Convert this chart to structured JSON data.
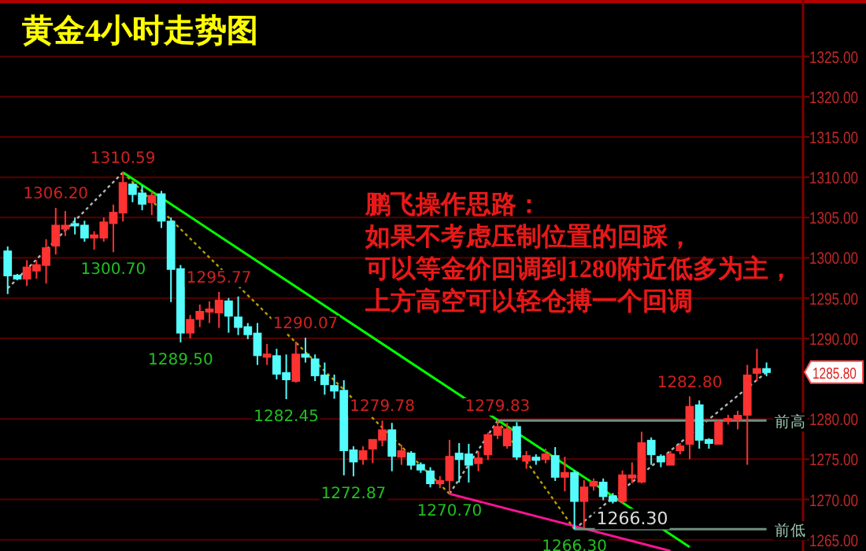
{
  "chart_data": {
    "type": "candlestick",
    "title": "黄金4小时走势图",
    "categories": [
      null,
      null,
      null,
      null,
      null,
      null,
      null,
      null,
      null,
      null,
      null,
      null,
      null,
      null,
      null,
      null,
      null,
      null,
      null,
      null,
      null,
      null,
      null,
      null,
      null,
      null,
      null,
      null,
      null,
      null,
      null,
      null,
      null,
      null,
      null,
      null,
      null,
      null,
      null,
      null,
      null,
      null,
      null,
      null,
      null,
      null,
      null,
      null,
      null,
      null,
      null,
      null,
      null,
      null,
      null,
      null,
      null,
      null,
      null,
      null,
      null,
      null,
      null,
      null,
      null,
      null,
      null,
      null,
      null,
      null,
      null,
      null,
      null,
      null,
      null,
      null,
      null,
      null,
      null,
      null
    ],
    "ylim": [
      1263.6,
      1332
    ],
    "value_labels": [
      null,
      null,
      null,
      null,
      null,
      "1306.20",
      null,
      null,
      null,
      null,
      null,
      "1300.70",
      "1310.59",
      null,
      null,
      null,
      null,
      null,
      "1289.50",
      null,
      null,
      null,
      "1295.77",
      null,
      null,
      null,
      null,
      null,
      null,
      "1282.45",
      null,
      "1290.07",
      null,
      null,
      null,
      null,
      "1272.87",
      null,
      null,
      "1279.78",
      null,
      null,
      null,
      null,
      null,
      null,
      "1270.70",
      null,
      null,
      null,
      null,
      "1279.83",
      null,
      null,
      null,
      null,
      null,
      null,
      null,
      "1266.30",
      null,
      null,
      null,
      null,
      null,
      null,
      null,
      null,
      null,
      null,
      null,
      "1282.80",
      null,
      null,
      null,
      null,
      null,
      null,
      null,
      null
    ],
    "yticks": [
      {
        "value": 1265,
        "label": "1265.00"
      },
      {
        "value": 1270,
        "label": "1270.00"
      },
      {
        "value": 1275,
        "label": "1275.00"
      },
      {
        "value": 1280,
        "label": "1280.00"
      },
      {
        "value": 1285.8,
        "label": "1285.80"
      },
      {
        "value": 1290,
        "label": "1290.00"
      },
      {
        "value": 1295,
        "label": "1295.00"
      },
      {
        "value": 1300,
        "label": "1300.00"
      },
      {
        "value": 1305,
        "label": "1305.00"
      },
      {
        "value": 1310,
        "label": "1310.00"
      },
      {
        "value": 1315,
        "label": "1315.00"
      },
      {
        "value": 1320,
        "label": "1320.00"
      },
      {
        "value": 1325,
        "label": "1325.00"
      }
    ],
    "tick_labels": "y",
    "grid": "y",
    "ohlc": [
      [
        1300.8,
        1301.4,
        1295.5,
        1297.8
      ],
      [
        1297.8,
        1298.0,
        1297.2,
        1297.4
      ],
      [
        1297.4,
        1299.7,
        1296.5,
        1298.8
      ],
      [
        1298.4,
        1299.7,
        1297.4,
        1299.1
      ],
      [
        1299.1,
        1302.3,
        1296.8,
        1301.2
      ],
      [
        1301.5,
        1306.2,
        1300.4,
        1304.0
      ],
      [
        1303.6,
        1305.8,
        1302.7,
        1304.0
      ],
      [
        1304.2,
        1305.0,
        1302.9,
        1304.0
      ],
      [
        1304.0,
        1304.6,
        1302.0,
        1302.5
      ],
      [
        1302.5,
        1303.3,
        1301.0,
        1302.8
      ],
      [
        1302.5,
        1305.0,
        1302.0,
        1304.4
      ],
      [
        1304.3,
        1306.6,
        1300.7,
        1305.6
      ],
      [
        1305.6,
        1310.59,
        1304.5,
        1309.3
      ],
      [
        1309.1,
        1309.3,
        1306.9,
        1307.9
      ],
      [
        1308.0,
        1309.0,
        1305.9,
        1306.7
      ],
      [
        1306.9,
        1308.3,
        1305.3,
        1307.7
      ],
      [
        1307.9,
        1308.3,
        1303.7,
        1304.6
      ],
      [
        1304.5,
        1305.0,
        1294.5,
        1298.6
      ],
      [
        1298.6,
        1299.1,
        1289.5,
        1290.7
      ],
      [
        1290.7,
        1292.9,
        1290.0,
        1292.3
      ],
      [
        1292.4,
        1294.2,
        1291.4,
        1293.3
      ],
      [
        1293.3,
        1294.6,
        1291.9,
        1293.6
      ],
      [
        1293.2,
        1295.77,
        1291.3,
        1294.7
      ],
      [
        1294.6,
        1295.0,
        1290.7,
        1292.8
      ],
      [
        1292.6,
        1295.2,
        1290.4,
        1291.4
      ],
      [
        1291.4,
        1291.9,
        1289.9,
        1290.5
      ],
      [
        1290.6,
        1291.9,
        1286.7,
        1287.9
      ],
      [
        1287.7,
        1289.3,
        1286.7,
        1288.0
      ],
      [
        1287.8,
        1288.7,
        1284.9,
        1285.6
      ],
      [
        1285.7,
        1288.0,
        1282.45,
        1284.9
      ],
      [
        1284.7,
        1289.6,
        1284.5,
        1288.0
      ],
      [
        1288.0,
        1290.07,
        1287.0,
        1287.7
      ],
      [
        1287.4,
        1288.0,
        1284.7,
        1285.4
      ],
      [
        1285.4,
        1287.0,
        1283.0,
        1284.3
      ],
      [
        1284.1,
        1285.5,
        1282.5,
        1283.5
      ],
      [
        1283.5,
        1284.8,
        1273.0,
        1276.1
      ],
      [
        1276.1,
        1276.6,
        1272.87,
        1274.7
      ],
      [
        1275.0,
        1276.6,
        1274.3,
        1276.0
      ],
      [
        1276.3,
        1277.4,
        1274.5,
        1277.4
      ],
      [
        1277.4,
        1279.78,
        1276.6,
        1278.6
      ],
      [
        1278.6,
        1279.5,
        1273.5,
        1275.4
      ],
      [
        1275.3,
        1276.8,
        1274.3,
        1276.0
      ],
      [
        1275.7,
        1276.0,
        1273.7,
        1274.3
      ],
      [
        1274.3,
        1274.6,
        1273.3,
        1273.7
      ],
      [
        1273.5,
        1274.0,
        1271.5,
        1272.0
      ],
      [
        1272.0,
        1272.9,
        1271.4,
        1272.3
      ],
      [
        1272.4,
        1277.4,
        1270.7,
        1275.3
      ],
      [
        1275.7,
        1277.0,
        1272.1,
        1275.0
      ],
      [
        1275.6,
        1276.9,
        1272.1,
        1274.3
      ],
      [
        1274.5,
        1276.0,
        1273.5,
        1275.1
      ],
      [
        1275.6,
        1278.3,
        1274.9,
        1278.0
      ],
      [
        1278.0,
        1279.83,
        1277.5,
        1279.0
      ],
      [
        1276.7,
        1279.5,
        1276.3,
        1278.7
      ],
      [
        1279.0,
        1279.6,
        1274.9,
        1275.3
      ],
      [
        1274.8,
        1276.0,
        1273.8,
        1275.4
      ],
      [
        1275.2,
        1275.6,
        1274.3,
        1274.9
      ],
      [
        1275.0,
        1276.3,
        1274.5,
        1275.6
      ],
      [
        1275.4,
        1276.5,
        1272.3,
        1272.8
      ],
      [
        1272.8,
        1275.3,
        1271.0,
        1273.3
      ],
      [
        1273.3,
        1273.6,
        1266.3,
        1269.8
      ],
      [
        1269.8,
        1272.4,
        1266.4,
        1271.5
      ],
      [
        1271.7,
        1272.6,
        1271.1,
        1272.2
      ],
      [
        1272.1,
        1272.6,
        1269.9,
        1270.4
      ],
      [
        1270.4,
        1270.8,
        1269.5,
        1269.8
      ],
      [
        1269.8,
        1273.6,
        1269.5,
        1273.0
      ],
      [
        1272.7,
        1274.6,
        1272.0,
        1273.0
      ],
      [
        1272.2,
        1278.4,
        1272.0,
        1277.0
      ],
      [
        1277.3,
        1277.7,
        1274.3,
        1275.6
      ],
      [
        1275.3,
        1275.6,
        1274.0,
        1274.7
      ],
      [
        1274.3,
        1276.0,
        1274.3,
        1275.6
      ],
      [
        1276.1,
        1277.0,
        1275.6,
        1276.6
      ],
      [
        1276.9,
        1282.8,
        1275.0,
        1281.5
      ],
      [
        1281.7,
        1282.3,
        1276.3,
        1277.4
      ],
      [
        1277.4,
        1277.6,
        1276.3,
        1277.0
      ],
      [
        1276.9,
        1279.9,
        1276.9,
        1279.6
      ],
      [
        1279.8,
        1280.5,
        1279.3,
        1280.0
      ],
      [
        1279.9,
        1281.0,
        1278.7,
        1280.4
      ],
      [
        1280.5,
        1286.7,
        1274.3,
        1285.4
      ],
      [
        1285.7,
        1288.7,
        1284.7,
        1286.2
      ],
      [
        1286.2,
        1287.0,
        1285.3,
        1285.8
      ]
    ],
    "colors": [
      "#54fcfc",
      "#54fcfc",
      "#ff3232",
      "#ff3232",
      "#ff3232",
      "#ff3232",
      "#ff3232",
      "#54fcfc",
      "#54fcfc",
      "#ff3232",
      "#ff3232",
      "#ff3232",
      "#ff3232",
      "#54fcfc",
      "#54fcfc",
      "#ff3232",
      "#54fcfc",
      "#54fcfc",
      "#54fcfc",
      "#ff3232",
      "#ff3232",
      "#ff3232",
      "#ff3232",
      "#54fcfc",
      "#54fcfc",
      "#54fcfc",
      "#54fcfc",
      "#ff3232",
      "#54fcfc",
      "#54fcfc",
      "#ff3232",
      "#54fcfc",
      "#54fcfc",
      "#54fcfc",
      "#54fcfc",
      "#54fcfc",
      "#54fcfc",
      "#ff3232",
      "#ff3232",
      "#ff3232",
      "#54fcfc",
      "#ff3232",
      "#54fcfc",
      "#54fcfc",
      "#54fcfc",
      "#ff3232",
      "#ff3232",
      "#54fcfc",
      "#54fcfc",
      "#ff3232",
      "#ff3232",
      "#ff3232",
      "#ff3232",
      "#54fcfc",
      "#ff3232",
      "#54fcfc",
      "#ff3232",
      "#54fcfc",
      "#ff3232",
      "#54fcfc",
      "#ff3232",
      "#ff3232",
      "#54fcfc",
      "#54fcfc",
      "#ff3232",
      "#ff3232",
      "#ff3232",
      "#54fcfc",
      "#54fcfc",
      "#ff3232",
      "#ff3232",
      "#ff3232",
      "#54fcfc",
      "#54fcfc",
      "#ff3232",
      "#ff3232",
      "#ff3232",
      "#ff3232",
      "#ff3232",
      "#54fcfc"
    ],
    "series": [
      {
        "type": "line",
        "color": "#b4b4b4",
        "line_style": "dotted",
        "values": [
          1296.2,
          null,
          null,
          null,
          null,
          null,
          null,
          null,
          null,
          null,
          null,
          null,
          1310.6,
          null,
          null,
          null,
          null,
          null,
          null,
          null,
          null,
          null,
          null,
          null,
          null,
          null,
          null,
          null,
          null,
          null,
          null,
          null,
          null,
          null,
          null,
          null,
          null,
          null,
          null,
          null,
          null,
          null,
          null,
          null,
          null,
          null,
          null,
          null,
          null,
          null,
          null,
          null,
          null,
          null,
          null,
          null,
          null,
          null,
          null,
          null,
          null,
          null,
          null,
          null,
          null,
          null,
          null,
          null,
          null,
          null,
          null,
          null,
          null,
          null,
          null,
          null,
          null,
          null,
          null,
          null
        ]
      },
      {
        "type": "line",
        "color": "#b4a000",
        "line_style": "dotted",
        "values": [
          null,
          null,
          null,
          null,
          null,
          null,
          null,
          null,
          null,
          null,
          null,
          null,
          1310.6,
          null,
          null,
          null,
          null,
          null,
          null,
          null,
          null,
          null,
          null,
          null,
          null,
          null,
          null,
          null,
          null,
          null,
          null,
          null,
          null,
          null,
          null,
          null,
          null,
          null,
          null,
          null,
          null,
          null,
          null,
          null,
          null,
          null,
          1270.7,
          null,
          null,
          null,
          null,
          null,
          null,
          null,
          null,
          null,
          null,
          null,
          null,
          null,
          null,
          null,
          null,
          null,
          null,
          null,
          null,
          null,
          null,
          null,
          null,
          null,
          null,
          null,
          null,
          null,
          null,
          null,
          null,
          null
        ]
      },
      {
        "type": "line",
        "color": "#b4b4b4",
        "line_style": "dotted",
        "values": [
          null,
          null,
          null,
          null,
          null,
          null,
          null,
          null,
          null,
          null,
          null,
          null,
          null,
          null,
          null,
          null,
          null,
          null,
          null,
          null,
          null,
          null,
          null,
          null,
          null,
          null,
          null,
          null,
          null,
          null,
          null,
          null,
          null,
          null,
          null,
          null,
          null,
          null,
          null,
          null,
          null,
          null,
          null,
          null,
          null,
          null,
          1270.7,
          null,
          null,
          null,
          null,
          1279.8,
          null,
          null,
          null,
          null,
          null,
          null,
          null,
          null,
          null,
          null,
          null,
          null,
          null,
          null,
          null,
          null,
          null,
          null,
          null,
          null,
          null,
          null,
          null,
          null,
          null,
          null,
          null,
          null
        ]
      },
      {
        "type": "line",
        "color": "#b4a000",
        "line_style": "dotted",
        "values": [
          null,
          null,
          null,
          null,
          null,
          null,
          null,
          null,
          null,
          null,
          null,
          null,
          null,
          null,
          null,
          null,
          null,
          null,
          null,
          null,
          null,
          null,
          null,
          null,
          null,
          null,
          null,
          null,
          null,
          null,
          null,
          null,
          null,
          null,
          null,
          null,
          null,
          null,
          null,
          null,
          null,
          null,
          null,
          null,
          null,
          null,
          null,
          null,
          null,
          null,
          null,
          1279.8,
          null,
          null,
          null,
          null,
          null,
          null,
          null,
          1266.3,
          null,
          null,
          null,
          null,
          null,
          null,
          null,
          null,
          null,
          null,
          null,
          null,
          null,
          null,
          null,
          null,
          null,
          null,
          null,
          null
        ]
      },
      {
        "type": "line",
        "color": "#b4b4b4",
        "line_style": "dotted",
        "values": [
          null,
          null,
          null,
          null,
          null,
          null,
          null,
          null,
          null,
          null,
          null,
          null,
          null,
          null,
          null,
          null,
          null,
          null,
          null,
          null,
          null,
          null,
          null,
          null,
          null,
          null,
          null,
          null,
          null,
          null,
          null,
          null,
          null,
          null,
          null,
          null,
          null,
          null,
          null,
          null,
          null,
          null,
          null,
          null,
          null,
          null,
          null,
          null,
          null,
          null,
          null,
          null,
          null,
          null,
          null,
          null,
          null,
          null,
          null,
          1266.3,
          null,
          null,
          null,
          null,
          null,
          null,
          null,
          null,
          null,
          null,
          null,
          null,
          null,
          null,
          null,
          null,
          null,
          null,
          null,
          1285.8
        ]
      },
      {
        "type": "line",
        "color": "#00ff00",
        "line_style": "solid",
        "values": [
          null,
          null,
          null,
          null,
          null,
          null,
          null,
          null,
          null,
          null,
          null,
          null,
          1310.6,
          null,
          null,
          null,
          null,
          null,
          null,
          null,
          null,
          null,
          null,
          null,
          null,
          null,
          null,
          null,
          null,
          null,
          null,
          null,
          null,
          null,
          null,
          null,
          null,
          null,
          null,
          null,
          null,
          null,
          null,
          null,
          null,
          null,
          null,
          null,
          null,
          null,
          null,
          null,
          null,
          null,
          null,
          null,
          null,
          null,
          null,
          null,
          null,
          null,
          null,
          null,
          null,
          null,
          null,
          null,
          null,
          null,
          null,
          1264.1,
          null,
          null,
          null,
          null,
          null,
          null,
          null,
          null
        ]
      },
      {
        "type": "line",
        "color": "#ff1493",
        "line_style": "solid",
        "values": [
          null,
          null,
          null,
          null,
          null,
          null,
          null,
          null,
          null,
          null,
          null,
          null,
          null,
          null,
          null,
          null,
          null,
          null,
          null,
          null,
          null,
          null,
          null,
          null,
          null,
          null,
          null,
          null,
          null,
          null,
          null,
          null,
          null,
          null,
          null,
          null,
          null,
          null,
          null,
          null,
          null,
          null,
          null,
          null,
          null,
          null,
          1270.7,
          null,
          null,
          null,
          null,
          null,
          null,
          null,
          null,
          null,
          null,
          null,
          null,
          null,
          null,
          null,
          null,
          null,
          null,
          null,
          null,
          null,
          null,
          1263.6,
          null,
          null,
          null,
          null,
          null,
          null,
          null,
          null,
          null,
          null
        ]
      },
      {
        "type": "line",
        "color": "#6e9080",
        "line_style": "solid",
        "values": [
          null,
          null,
          null,
          null,
          null,
          null,
          null,
          null,
          null,
          null,
          null,
          null,
          null,
          null,
          null,
          null,
          null,
          null,
          null,
          null,
          null,
          null,
          null,
          null,
          null,
          null,
          null,
          null,
          null,
          null,
          null,
          null,
          null,
          null,
          null,
          null,
          null,
          null,
          null,
          null,
          null,
          null,
          null,
          null,
          null,
          null,
          null,
          null,
          null,
          null,
          null,
          1279.8,
          null,
          null,
          null,
          null,
          null,
          null,
          null,
          null,
          null,
          null,
          null,
          null,
          null,
          null,
          null,
          null,
          null,
          null,
          null,
          null,
          null,
          null,
          null,
          null,
          null,
          null,
          null,
          1279.8
        ],
        "value_labels": [
          null,
          null,
          null,
          null,
          null,
          null,
          null,
          null,
          null,
          null,
          null,
          null,
          null,
          null,
          null,
          null,
          null,
          null,
          null,
          null,
          null,
          null,
          null,
          null,
          null,
          null,
          null,
          null,
          null,
          null,
          null,
          null,
          null,
          null,
          null,
          null,
          null,
          null,
          null,
          null,
          null,
          null,
          null,
          null,
          null,
          null,
          null,
          null,
          null,
          null,
          null,
          null,
          null,
          null,
          null,
          null,
          null,
          null,
          null,
          null,
          null,
          null,
          null,
          null,
          null,
          null,
          null,
          null,
          null,
          null,
          null,
          null,
          null,
          null,
          null,
          null,
          null,
          null,
          null,
          "前高"
        ]
      },
      {
        "type": "line",
        "color": "#6e9080",
        "line_style": "solid",
        "values": [
          null,
          null,
          null,
          null,
          null,
          null,
          null,
          null,
          null,
          null,
          null,
          null,
          null,
          null,
          null,
          null,
          null,
          null,
          null,
          null,
          null,
          null,
          null,
          null,
          null,
          null,
          null,
          null,
          null,
          null,
          null,
          null,
          null,
          null,
          null,
          null,
          null,
          null,
          null,
          null,
          null,
          null,
          null,
          null,
          null,
          null,
          null,
          null,
          null,
          null,
          null,
          null,
          null,
          null,
          null,
          null,
          null,
          null,
          null,
          1266.3,
          null,
          null,
          null,
          null,
          null,
          null,
          null,
          null,
          null,
          null,
          null,
          null,
          null,
          null,
          null,
          null,
          null,
          null,
          null,
          1266.3
        ],
        "value_labels": [
          null,
          null,
          null,
          null,
          null,
          null,
          null,
          null,
          null,
          null,
          null,
          null,
          null,
          null,
          null,
          null,
          null,
          null,
          null,
          null,
          null,
          null,
          null,
          null,
          null,
          null,
          null,
          null,
          null,
          null,
          null,
          null,
          null,
          null,
          null,
          null,
          null,
          null,
          null,
          null,
          null,
          null,
          null,
          null,
          null,
          null,
          null,
          null,
          null,
          null,
          null,
          null,
          null,
          null,
          null,
          null,
          null,
          null,
          null,
          "1266.30",
          null,
          null,
          null,
          null,
          null,
          null,
          null,
          null,
          null,
          null,
          null,
          null,
          null,
          null,
          null,
          null,
          null,
          null,
          null,
          "前低"
        ]
      }
    ],
    "annotations": [
      "鹏飞操作思路：",
      "如果不考虑压制位置的回踩，",
      "可以等金价回调到1280附近低多为主，",
      "上方高空可以轻仓搏一个回调"
    ]
  }
}
